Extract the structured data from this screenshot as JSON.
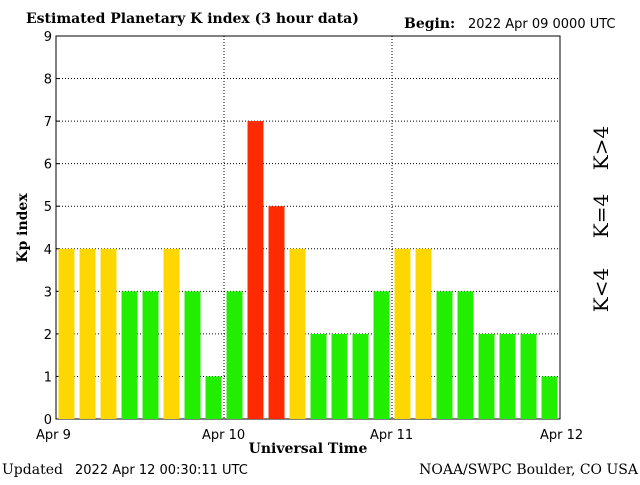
{
  "header": {
    "title": "Estimated Planetary K index (3 hour data)",
    "begin_label": "Begin:",
    "begin_value": "2022 Apr 09 0000 UTC"
  },
  "footer": {
    "updated_label": "Updated",
    "updated_value": "2022 Apr 12 00:30:11 UTC",
    "credit": "NOAA/SWPC Boulder, CO USA"
  },
  "legend": {
    "high": "K>4",
    "equal": "K=4",
    "low": "K<4"
  },
  "colors": {
    "low": "#22ee00",
    "equal": "#ffd700",
    "high": "#ff2a00"
  },
  "chart_data": {
    "type": "bar",
    "title": "Estimated Planetary K index (3 hour data)",
    "xlabel": "Universal Time",
    "ylabel": "Kp index",
    "ylim": [
      0,
      9
    ],
    "yticks": [
      "0",
      "1",
      "2",
      "3",
      "4",
      "5",
      "6",
      "7",
      "8",
      "9"
    ],
    "xticks": [
      "Apr 9",
      "Apr 10",
      "Apr 11",
      "Apr 12"
    ],
    "grid": true,
    "values": [
      4,
      4,
      4,
      3,
      3,
      4,
      3,
      1,
      3,
      7,
      5,
      4,
      2,
      2,
      2,
      3,
      4,
      4,
      3,
      3,
      2,
      2,
      2,
      1
    ]
  }
}
